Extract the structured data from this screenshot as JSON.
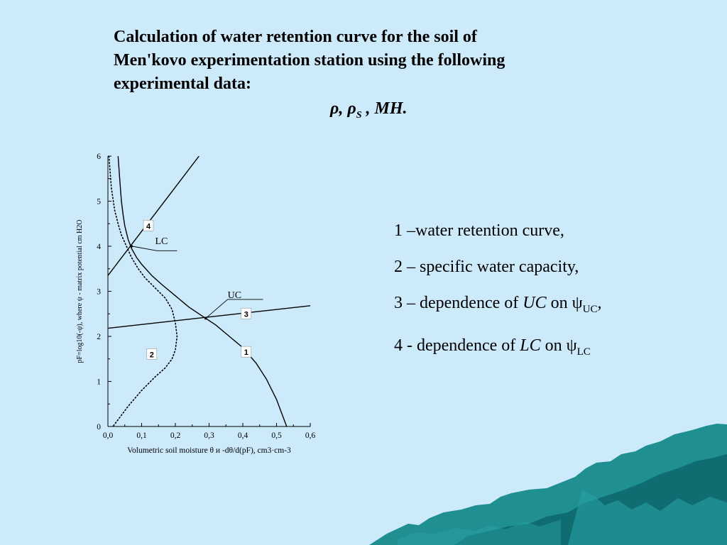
{
  "title": {
    "line1": "Calculation  of water retention curve for the soil of",
    "line2": "Men'kovo experimentation station using the following",
    "line3": "experimental data:",
    "symbols": "ρ, ρ",
    "symbols_sub": "S",
    "symbols_tail": " , MH."
  },
  "legend": {
    "item1": "1 –water retention curve,",
    "item2": "2 – specific water capacity,",
    "item3_prefix": "3 – dependence of ",
    "item3_em": "UC",
    "item3_mid": " on ψ",
    "item3_sub": "UC",
    "item3_tail": ",",
    "item4_prefix": "4 - dependence of ",
    "item4_em": "LC",
    "item4_mid": " on ψ",
    "item4_sub": "LC"
  },
  "chart_data": {
    "type": "line",
    "xlim": [
      0,
      0.6
    ],
    "ylim": [
      0,
      6
    ],
    "x_ticks": [
      "0,0",
      "0,1",
      "0,2",
      "0,3",
      "0,4",
      "0,5",
      "0,6"
    ],
    "y_ticks": [
      "0",
      "1",
      "2",
      "3",
      "4",
      "5",
      "6"
    ],
    "xlabel": "Volumetric soil moisture θ и -dθ/d(pF), cm3·cm-3",
    "ylabel": "pF=log10(-ψ), where ψ - matrix potential cm H2O",
    "grid": false,
    "series": [
      {
        "name": "1",
        "style": "solid",
        "x": [
          0.03,
          0.035,
          0.04,
          0.045,
          0.05,
          0.06,
          0.07,
          0.085,
          0.1,
          0.13,
          0.16,
          0.2,
          0.24,
          0.28,
          0.32,
          0.36,
          0.4,
          0.44,
          0.47,
          0.5,
          0.515,
          0.525,
          0.53
        ],
        "y": [
          6.0,
          5.5,
          5.0,
          4.7,
          4.45,
          4.15,
          3.95,
          3.75,
          3.6,
          3.35,
          3.15,
          2.9,
          2.65,
          2.45,
          2.25,
          2.0,
          1.75,
          1.4,
          1.05,
          0.6,
          0.3,
          0.1,
          0.0
        ]
      },
      {
        "name": "2",
        "style": "dotted",
        "x": [
          0.003,
          0.006,
          0.01,
          0.02,
          0.03,
          0.04,
          0.055,
          0.07,
          0.09,
          0.11,
          0.13,
          0.15,
          0.17,
          0.19,
          0.2,
          0.205,
          0.2,
          0.19,
          0.17,
          0.14,
          0.1,
          0.06,
          0.035,
          0.02,
          0.015
        ],
        "y": [
          6.0,
          5.7,
          5.3,
          4.8,
          4.5,
          4.25,
          4.0,
          3.75,
          3.5,
          3.3,
          3.15,
          3.0,
          2.85,
          2.6,
          2.3,
          2.0,
          1.7,
          1.5,
          1.3,
          1.1,
          0.8,
          0.45,
          0.2,
          0.05,
          0.0
        ]
      },
      {
        "name": "3",
        "style": "solid",
        "x": [
          0.0,
          0.6
        ],
        "y": [
          2.18,
          2.68
        ]
      },
      {
        "name": "4",
        "style": "solid",
        "x": [
          0.0,
          0.27
        ],
        "y": [
          3.35,
          6.0
        ]
      }
    ],
    "annotations": [
      {
        "text": "LC",
        "x": 0.07,
        "y": 4.0
      },
      {
        "text": "UC",
        "x": 0.29,
        "y": 2.4
      }
    ],
    "series_labels": [
      "1",
      "2",
      "3",
      "4"
    ]
  }
}
